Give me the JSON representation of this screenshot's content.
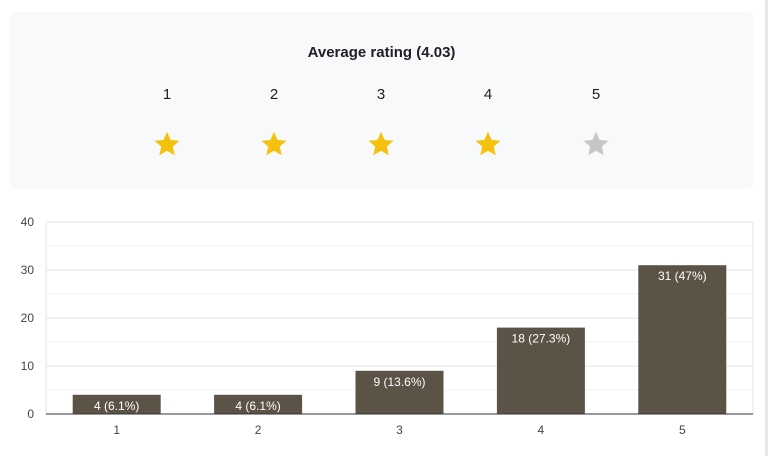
{
  "rating_summary": {
    "title": "Average rating (4.03)",
    "average": 4.03,
    "stars": [
      {
        "label": "1",
        "filled": true
      },
      {
        "label": "2",
        "filled": true
      },
      {
        "label": "3",
        "filled": true
      },
      {
        "label": "4",
        "filled": true
      },
      {
        "label": "5",
        "filled": false
      }
    ],
    "filled_color": "#f4c20d",
    "empty_color": "#c6c6c6"
  },
  "chart_data": {
    "type": "bar",
    "categories": [
      "1",
      "2",
      "3",
      "4",
      "5"
    ],
    "values": [
      4,
      4,
      9,
      18,
      31
    ],
    "data_labels": [
      "4 (6.1%)",
      "4 (6.1%)",
      "9 (13.6%)",
      "18 (27.3%)",
      "31 (47%)"
    ],
    "ylim": [
      0,
      40
    ],
    "yticks": [
      "0",
      "10",
      "20",
      "30",
      "40"
    ],
    "grid": true,
    "bar_color": "#5b5346",
    "label_color": "#ffffff"
  }
}
